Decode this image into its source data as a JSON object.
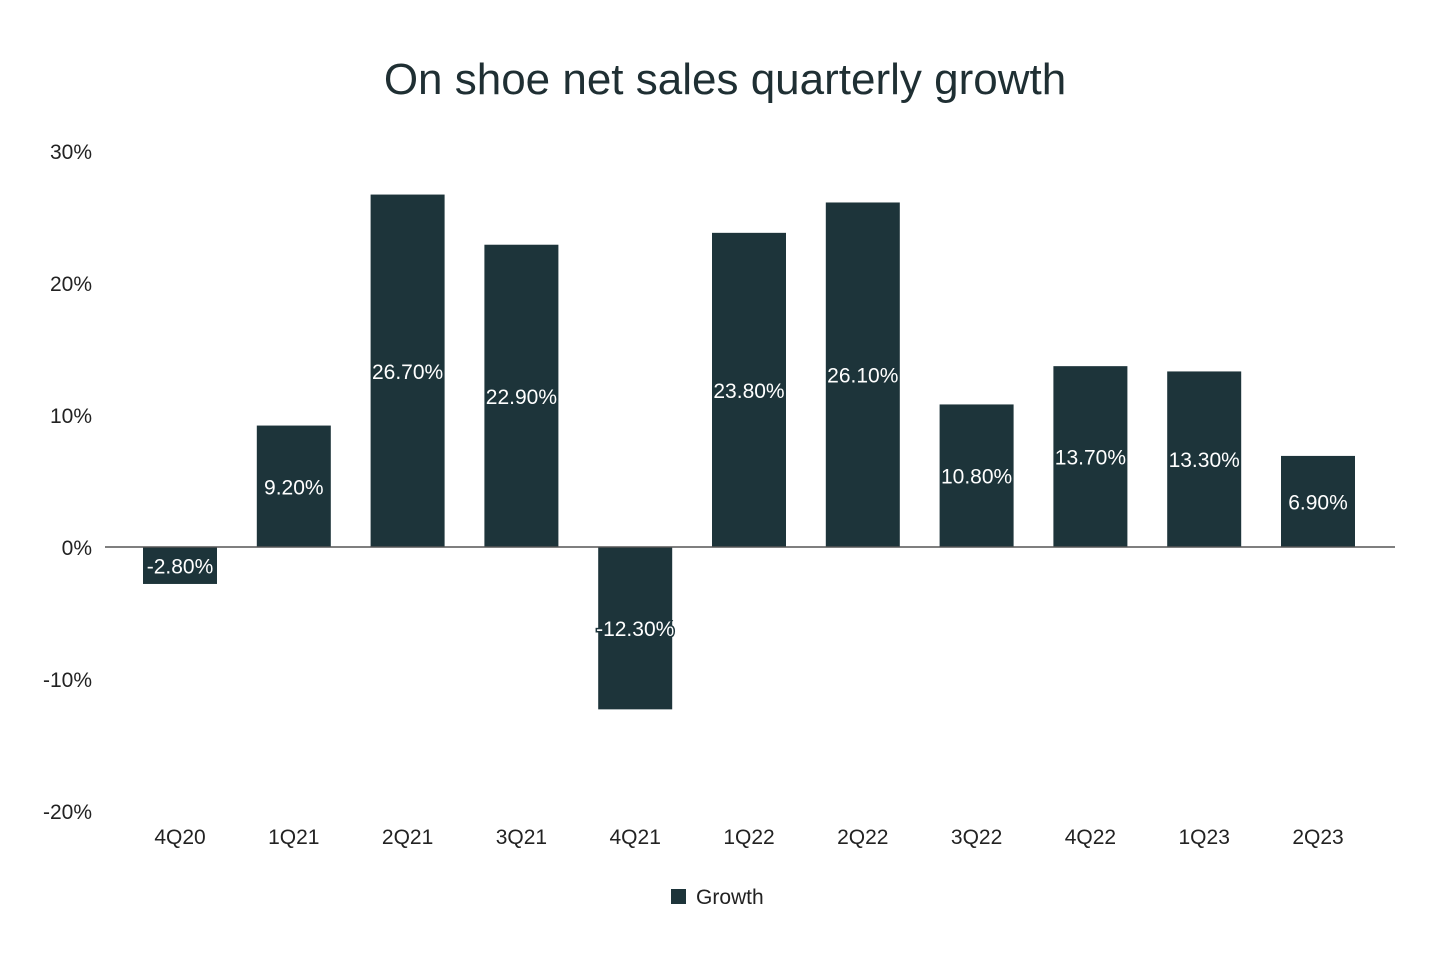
{
  "chart_data": {
    "type": "bar",
    "title": "On shoe net sales quarterly growth",
    "categories": [
      "4Q20",
      "1Q21",
      "2Q21",
      "3Q21",
      "4Q21",
      "1Q22",
      "2Q22",
      "3Q22",
      "4Q22",
      "1Q23",
      "2Q23"
    ],
    "series": [
      {
        "name": "Growth",
        "values": [
          -2.8,
          9.2,
          26.7,
          22.9,
          -12.3,
          23.8,
          26.1,
          10.8,
          13.7,
          13.3,
          6.9
        ],
        "labels": [
          "-2.80%",
          "9.20%",
          "26.70%",
          "22.90%",
          "-12.30%",
          "23.80%",
          "26.10%",
          "10.80%",
          "13.70%",
          "13.30%",
          "6.90%"
        ]
      }
    ],
    "ylim": [
      -20,
      30
    ],
    "yticks": [
      30,
      20,
      10,
      0,
      -10,
      -20
    ],
    "ytick_labels": [
      "30%",
      "20%",
      "10%",
      "0%",
      "-10%",
      "-20%"
    ],
    "xlabel": "",
    "ylabel": "",
    "grid": false,
    "legend": "bottom",
    "bar_color": "#1d343a"
  }
}
